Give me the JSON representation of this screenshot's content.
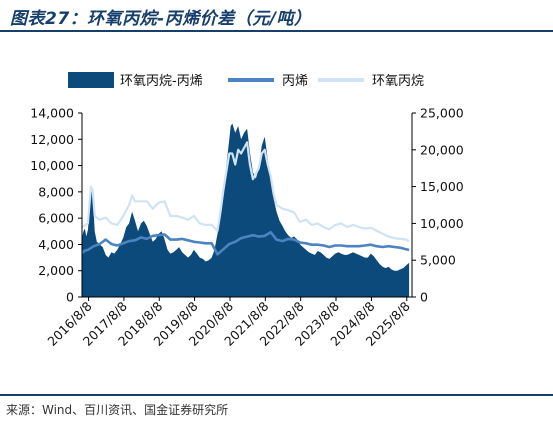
{
  "figure_title": "图表27：环氧丙烷-丙烯价差（元/吨）",
  "source": "来源：Wind、百川资讯、国金证券研究所",
  "colors": {
    "spread": "#0b4a7a",
    "propylene": "#4c83c2",
    "po": "#cfe3f5",
    "title": "#173f6b"
  },
  "chart_data": {
    "type": "area+line",
    "title": "",
    "legend_position": "top",
    "grid": false,
    "x_ticks": [
      "2016/8/8",
      "2017/8/8",
      "2018/8/8",
      "2019/8/8",
      "2020/8/8",
      "2021/8/8",
      "2022/8/8",
      "2023/8/8",
      "2024/8/8",
      "2025/8/8"
    ],
    "xlim": [
      "2016-06-01",
      "2025-10-01"
    ],
    "y_left": {
      "lim": [
        0,
        14000
      ],
      "ticks": [
        "0",
        "2,000",
        "4,000",
        "6,000",
        "8,000",
        "10,000",
        "12,000",
        "14,000"
      ]
    },
    "y_right": {
      "lim": [
        0,
        25000
      ],
      "ticks": [
        "0",
        "5,000",
        "10,000",
        "15,000",
        "20,000",
        "25,000"
      ]
    },
    "series": [
      {
        "name": "环氧丙烷-丙烯",
        "kind": "area",
        "axis": "left",
        "points": [
          [
            "2016-06-01",
            4500
          ],
          [
            "2016-06-15",
            5000
          ],
          [
            "2016-07-01",
            5200
          ],
          [
            "2016-07-15",
            4600
          ],
          [
            "2016-08-01",
            5100
          ],
          [
            "2016-09-01",
            8000
          ],
          [
            "2016-09-20",
            8000
          ],
          [
            "2016-10-10",
            5000
          ],
          [
            "2016-11-01",
            4200
          ],
          [
            "2016-12-01",
            4000
          ],
          [
            "2017-01-01",
            3800
          ],
          [
            "2017-02-01",
            3200
          ],
          [
            "2017-03-01",
            3000
          ],
          [
            "2017-04-01",
            3400
          ],
          [
            "2017-05-01",
            3300
          ],
          [
            "2017-06-01",
            3600
          ],
          [
            "2017-07-01",
            4000
          ],
          [
            "2017-08-01",
            4500
          ],
          [
            "2017-09-01",
            5300
          ],
          [
            "2017-10-01",
            5600
          ],
          [
            "2017-11-01",
            6500
          ],
          [
            "2017-12-01",
            5800
          ],
          [
            "2018-01-01",
            5000
          ],
          [
            "2018-02-01",
            5600
          ],
          [
            "2018-03-01",
            5800
          ],
          [
            "2018-04-01",
            5400
          ],
          [
            "2018-05-01",
            4800
          ],
          [
            "2018-06-01",
            4200
          ],
          [
            "2018-07-01",
            4400
          ],
          [
            "2018-08-01",
            4800
          ],
          [
            "2018-09-01",
            5000
          ],
          [
            "2018-10-01",
            4400
          ],
          [
            "2018-11-01",
            3600
          ],
          [
            "2018-12-01",
            3300
          ],
          [
            "2019-01-01",
            3400
          ],
          [
            "2019-02-01",
            3600
          ],
          [
            "2019-03-01",
            3800
          ],
          [
            "2019-04-01",
            3400
          ],
          [
            "2019-05-01",
            3200
          ],
          [
            "2019-06-01",
            3000
          ],
          [
            "2019-07-01",
            3200
          ],
          [
            "2019-08-01",
            3600
          ],
          [
            "2019-09-01",
            3300
          ],
          [
            "2019-10-01",
            3000
          ],
          [
            "2019-11-01",
            2900
          ],
          [
            "2019-12-01",
            2700
          ],
          [
            "2020-01-01",
            2800
          ],
          [
            "2020-02-01",
            3000
          ],
          [
            "2020-03-01",
            3600
          ],
          [
            "2020-04-01",
            4800
          ],
          [
            "2020-05-01",
            6000
          ],
          [
            "2020-06-01",
            8000
          ],
          [
            "2020-07-01",
            10000
          ],
          [
            "2020-08-01",
            12000
          ],
          [
            "2020-08-15",
            13000
          ],
          [
            "2020-09-01",
            13200
          ],
          [
            "2020-10-01",
            12500
          ],
          [
            "2020-11-01",
            13000
          ],
          [
            "2020-12-01",
            12000
          ],
          [
            "2021-01-01",
            12500
          ],
          [
            "2021-02-01",
            12800
          ],
          [
            "2021-03-01",
            11000
          ],
          [
            "2021-04-01",
            9500
          ],
          [
            "2021-05-01",
            9000
          ],
          [
            "2021-06-01",
            9800
          ],
          [
            "2021-07-01",
            11500
          ],
          [
            "2021-08-01",
            12200
          ],
          [
            "2021-09-01",
            10500
          ],
          [
            "2021-10-01",
            9000
          ],
          [
            "2021-11-01",
            7500
          ],
          [
            "2021-12-01",
            6500
          ],
          [
            "2022-01-01",
            5800
          ],
          [
            "2022-02-01",
            5400
          ],
          [
            "2022-03-01",
            5000
          ],
          [
            "2022-04-01",
            4700
          ],
          [
            "2022-05-01",
            4500
          ],
          [
            "2022-06-01",
            4600
          ],
          [
            "2022-07-01",
            4400
          ],
          [
            "2022-08-01",
            4000
          ],
          [
            "2022-09-01",
            3800
          ],
          [
            "2022-10-01",
            3600
          ],
          [
            "2022-11-01",
            3400
          ],
          [
            "2022-12-01",
            3300
          ],
          [
            "2023-01-01",
            3200
          ],
          [
            "2023-02-01",
            3500
          ],
          [
            "2023-03-01",
            3400
          ],
          [
            "2023-04-01",
            3200
          ],
          [
            "2023-05-01",
            3000
          ],
          [
            "2023-06-01",
            2900
          ],
          [
            "2023-07-01",
            3100
          ],
          [
            "2023-08-01",
            3300
          ],
          [
            "2023-09-01",
            3400
          ],
          [
            "2023-10-01",
            3300
          ],
          [
            "2023-11-01",
            3200
          ],
          [
            "2023-12-01",
            3200
          ],
          [
            "2024-01-01",
            3300
          ],
          [
            "2024-02-01",
            3400
          ],
          [
            "2024-03-01",
            3300
          ],
          [
            "2024-04-01",
            3200
          ],
          [
            "2024-05-01",
            3100
          ],
          [
            "2024-06-01",
            3000
          ],
          [
            "2024-07-01",
            3000
          ],
          [
            "2024-08-01",
            3300
          ],
          [
            "2024-09-01",
            3100
          ],
          [
            "2024-10-01",
            2800
          ],
          [
            "2024-11-01",
            2500
          ],
          [
            "2024-12-01",
            2300
          ],
          [
            "2025-01-01",
            2200
          ],
          [
            "2025-02-01",
            2300
          ],
          [
            "2025-03-01",
            2100
          ],
          [
            "2025-04-01",
            2000
          ],
          [
            "2025-05-01",
            2000
          ],
          [
            "2025-06-01",
            2100
          ],
          [
            "2025-07-01",
            2200
          ],
          [
            "2025-08-01",
            2400
          ],
          [
            "2025-09-01",
            2600
          ]
        ]
      },
      {
        "name": "丙烯",
        "kind": "line",
        "axis": "right",
        "points": [
          [
            "2016-06-01",
            6000
          ],
          [
            "2016-07-01",
            6300
          ],
          [
            "2016-08-01",
            6400
          ],
          [
            "2016-10-01",
            6900
          ],
          [
            "2016-12-01",
            7200
          ],
          [
            "2017-02-01",
            7800
          ],
          [
            "2017-04-01",
            7200
          ],
          [
            "2017-06-01",
            7000
          ],
          [
            "2017-08-01",
            7300
          ],
          [
            "2017-10-01",
            7600
          ],
          [
            "2017-12-01",
            7700
          ],
          [
            "2018-02-01",
            8100
          ],
          [
            "2018-04-01",
            7900
          ],
          [
            "2018-06-01",
            8300
          ],
          [
            "2018-08-01",
            8400
          ],
          [
            "2018-10-01",
            8500
          ],
          [
            "2018-12-01",
            7800
          ],
          [
            "2019-02-01",
            7800
          ],
          [
            "2019-04-01",
            7900
          ],
          [
            "2019-06-01",
            7700
          ],
          [
            "2019-08-01",
            7500
          ],
          [
            "2019-10-01",
            7400
          ],
          [
            "2019-12-01",
            7300
          ],
          [
            "2020-02-01",
            7300
          ],
          [
            "2020-04-01",
            5800
          ],
          [
            "2020-06-01",
            6500
          ],
          [
            "2020-08-01",
            7200
          ],
          [
            "2020-10-01",
            7500
          ],
          [
            "2020-12-01",
            8000
          ],
          [
            "2021-02-01",
            8200
          ],
          [
            "2021-04-01",
            8400
          ],
          [
            "2021-06-01",
            8200
          ],
          [
            "2021-08-01",
            8300
          ],
          [
            "2021-10-01",
            8800
          ],
          [
            "2021-12-01",
            7800
          ],
          [
            "2022-02-01",
            7600
          ],
          [
            "2022-04-01",
            7900
          ],
          [
            "2022-06-01",
            7800
          ],
          [
            "2022-08-01",
            7400
          ],
          [
            "2022-10-01",
            7300
          ],
          [
            "2022-12-01",
            7100
          ],
          [
            "2023-02-01",
            7100
          ],
          [
            "2023-04-01",
            7000
          ],
          [
            "2023-06-01",
            6800
          ],
          [
            "2023-08-01",
            7000
          ],
          [
            "2023-10-01",
            7000
          ],
          [
            "2023-12-01",
            6900
          ],
          [
            "2024-02-01",
            6900
          ],
          [
            "2024-04-01",
            6900
          ],
          [
            "2024-06-01",
            7000
          ],
          [
            "2024-08-01",
            7100
          ],
          [
            "2024-10-01",
            6900
          ],
          [
            "2024-12-01",
            6800
          ],
          [
            "2025-02-01",
            6900
          ],
          [
            "2025-04-01",
            6800
          ],
          [
            "2025-06-01",
            6700
          ],
          [
            "2025-08-01",
            6500
          ],
          [
            "2025-09-01",
            6400
          ]
        ]
      },
      {
        "name": "环氧丙烷",
        "kind": "line",
        "axis": "right",
        "points": [
          [
            "2016-06-01",
            9500
          ],
          [
            "2016-08-01",
            10000
          ],
          [
            "2016-09-01",
            15000
          ],
          [
            "2016-09-20",
            14500
          ],
          [
            "2016-10-10",
            11000
          ],
          [
            "2016-12-01",
            10500
          ],
          [
            "2017-02-01",
            10800
          ],
          [
            "2017-04-01",
            10000
          ],
          [
            "2017-06-01",
            9800
          ],
          [
            "2017-08-01",
            11000
          ],
          [
            "2017-10-01",
            12500
          ],
          [
            "2017-11-01",
            13800
          ],
          [
            "2017-12-01",
            13000
          ],
          [
            "2018-02-01",
            13000
          ],
          [
            "2018-04-01",
            13000
          ],
          [
            "2018-06-01",
            12000
          ],
          [
            "2018-08-01",
            12800
          ],
          [
            "2018-10-01",
            13000
          ],
          [
            "2018-12-01",
            11000
          ],
          [
            "2019-02-01",
            11000
          ],
          [
            "2019-04-01",
            10800
          ],
          [
            "2019-06-01",
            10500
          ],
          [
            "2019-08-01",
            11000
          ],
          [
            "2019-10-01",
            10000
          ],
          [
            "2019-12-01",
            9800
          ],
          [
            "2020-02-01",
            9800
          ],
          [
            "2020-04-01",
            9000
          ],
          [
            "2020-05-01",
            11500
          ],
          [
            "2020-06-01",
            14500
          ],
          [
            "2020-07-01",
            17000
          ],
          [
            "2020-08-01",
            19500
          ],
          [
            "2020-09-01",
            19500
          ],
          [
            "2020-10-01",
            18000
          ],
          [
            "2020-11-01",
            20000
          ],
          [
            "2020-12-01",
            19500
          ],
          [
            "2021-02-01",
            21000
          ],
          [
            "2021-03-01",
            18000
          ],
          [
            "2021-04-01",
            16000
          ],
          [
            "2021-06-01",
            17500
          ],
          [
            "2021-07-01",
            19500
          ],
          [
            "2021-08-01",
            20000
          ],
          [
            "2021-09-01",
            18000
          ],
          [
            "2021-10-01",
            16500
          ],
          [
            "2021-11-01",
            14000
          ],
          [
            "2021-12-01",
            12500
          ],
          [
            "2022-02-01",
            12000
          ],
          [
            "2022-04-01",
            11800
          ],
          [
            "2022-06-01",
            11500
          ],
          [
            "2022-08-01",
            10200
          ],
          [
            "2022-10-01",
            10500
          ],
          [
            "2022-12-01",
            9800
          ],
          [
            "2023-02-01",
            10000
          ],
          [
            "2023-04-01",
            9500
          ],
          [
            "2023-06-01",
            9200
          ],
          [
            "2023-08-01",
            9800
          ],
          [
            "2023-10-01",
            10000
          ],
          [
            "2023-12-01",
            9500
          ],
          [
            "2024-02-01",
            9800
          ],
          [
            "2024-04-01",
            9500
          ],
          [
            "2024-06-01",
            9300
          ],
          [
            "2024-08-01",
            9400
          ],
          [
            "2024-10-01",
            9000
          ],
          [
            "2024-12-01",
            8600
          ],
          [
            "2025-02-01",
            8200
          ],
          [
            "2025-04-01",
            8000
          ],
          [
            "2025-06-01",
            7900
          ],
          [
            "2025-08-01",
            7800
          ],
          [
            "2025-09-01",
            7600
          ]
        ]
      }
    ]
  }
}
